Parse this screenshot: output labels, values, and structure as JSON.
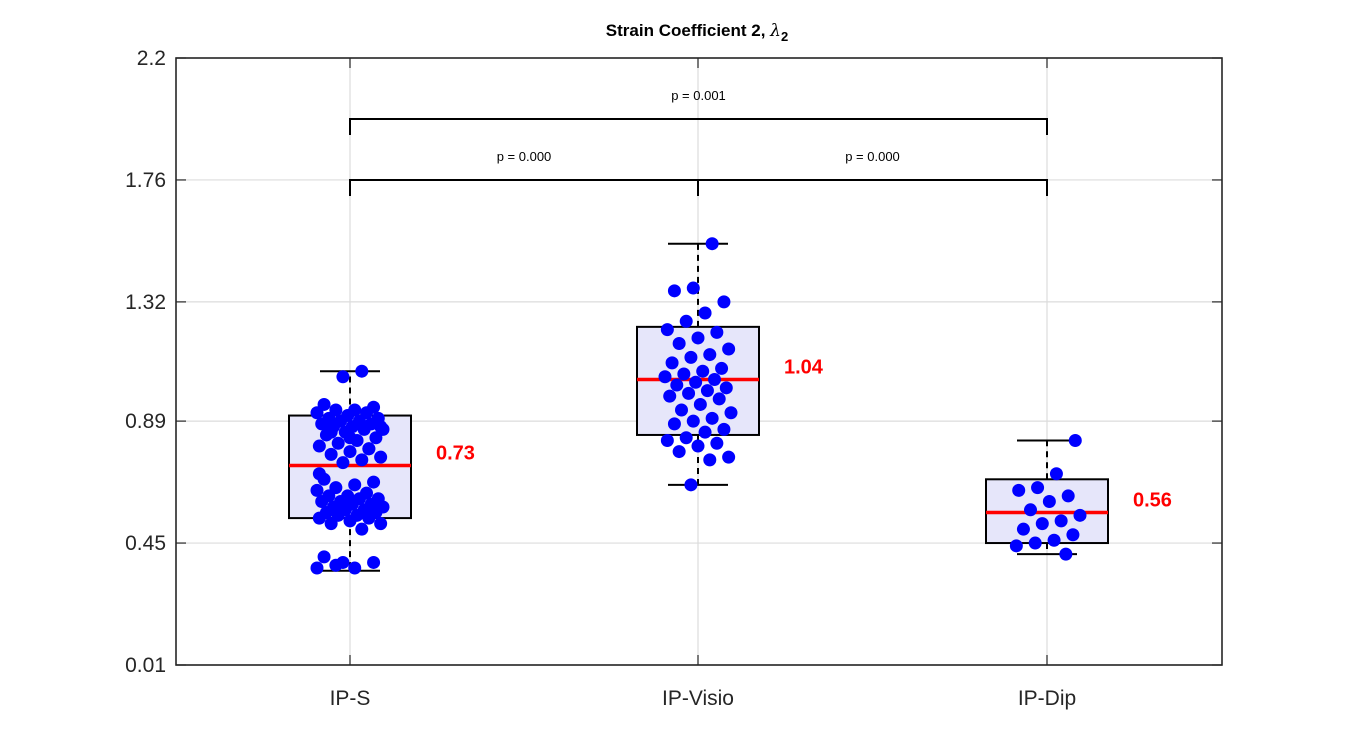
{
  "chart_data": {
    "type": "box",
    "title": "Strain Coefficient 2, ",
    "title_symbol": "λ",
    "title_subscript": "2",
    "xlabel": "",
    "ylabel": "",
    "ylim": [
      0.01,
      2.2
    ],
    "yticks": [
      0.01,
      0.45,
      0.89,
      1.32,
      1.76,
      2.2
    ],
    "ytick_labels": [
      "0.01",
      "0.45",
      "0.89",
      "1.32",
      "1.76",
      "2.2"
    ],
    "categories": [
      "IP-S",
      "IP-Visio",
      "IP-Dip"
    ],
    "grid": true,
    "colors": {
      "box_fill": "#e6e6fa",
      "box_edge": "#000000",
      "median": "#ff0000",
      "points": "#0000ff",
      "grid": "#dcdcdc"
    },
    "boxes": [
      {
        "category": "IP-S",
        "whisker_low": 0.35,
        "q1": 0.54,
        "median": 0.73,
        "q3": 0.91,
        "whisker_high": 1.07,
        "median_label": "0.73",
        "points": [
          0.36,
          0.37,
          0.36,
          0.38,
          0.4,
          0.38,
          0.5,
          0.52,
          0.52,
          0.53,
          0.54,
          0.54,
          0.55,
          0.55,
          0.56,
          0.56,
          0.57,
          0.57,
          0.58,
          0.58,
          0.59,
          0.59,
          0.6,
          0.6,
          0.61,
          0.61,
          0.62,
          0.62,
          0.63,
          0.64,
          0.65,
          0.66,
          0.67,
          0.68,
          0.74,
          0.75,
          0.76,
          0.77,
          0.78,
          0.79,
          0.8,
          0.81,
          0.82,
          0.83,
          0.84,
          0.85,
          0.86,
          0.86,
          0.87,
          0.87,
          0.88,
          0.88,
          0.89,
          0.89,
          0.9,
          0.9,
          0.91,
          0.92,
          0.92,
          0.93,
          0.93,
          0.94,
          0.95,
          1.05,
          1.07,
          0.87,
          0.85,
          0.83,
          0.79,
          0.7
        ]
      },
      {
        "category": "IP-Visio",
        "whisker_low": 0.66,
        "q1": 0.84,
        "median": 1.04,
        "q3": 1.23,
        "whisker_high": 1.53,
        "median_label": "1.04",
        "points": [
          0.66,
          0.75,
          0.76,
          0.78,
          0.8,
          0.81,
          0.82,
          0.83,
          0.85,
          0.86,
          0.88,
          0.89,
          0.9,
          0.92,
          0.93,
          0.95,
          0.97,
          0.98,
          0.99,
          1.0,
          1.01,
          1.02,
          1.03,
          1.04,
          1.05,
          1.06,
          1.07,
          1.08,
          1.1,
          1.12,
          1.13,
          1.15,
          1.17,
          1.19,
          1.21,
          1.22,
          1.25,
          1.28,
          1.32,
          1.36,
          1.37,
          1.53
        ]
      },
      {
        "category": "IP-Dip",
        "whisker_low": 0.41,
        "q1": 0.45,
        "median": 0.56,
        "q3": 0.68,
        "whisker_high": 0.82,
        "median_label": "0.56",
        "points": [
          0.41,
          0.44,
          0.45,
          0.46,
          0.48,
          0.5,
          0.52,
          0.53,
          0.55,
          0.57,
          0.6,
          0.62,
          0.64,
          0.65,
          0.7,
          0.82
        ]
      }
    ],
    "significance": [
      {
        "from": "IP-S",
        "to": "IP-Visio",
        "label": "p = 0.000",
        "y": 1.76
      },
      {
        "from": "IP-Visio",
        "to": "IP-Dip",
        "label": "p = 0.000",
        "y": 1.76
      },
      {
        "from": "IP-S",
        "to": "IP-Dip",
        "label": "p = 0.001",
        "y": 1.98
      }
    ]
  }
}
